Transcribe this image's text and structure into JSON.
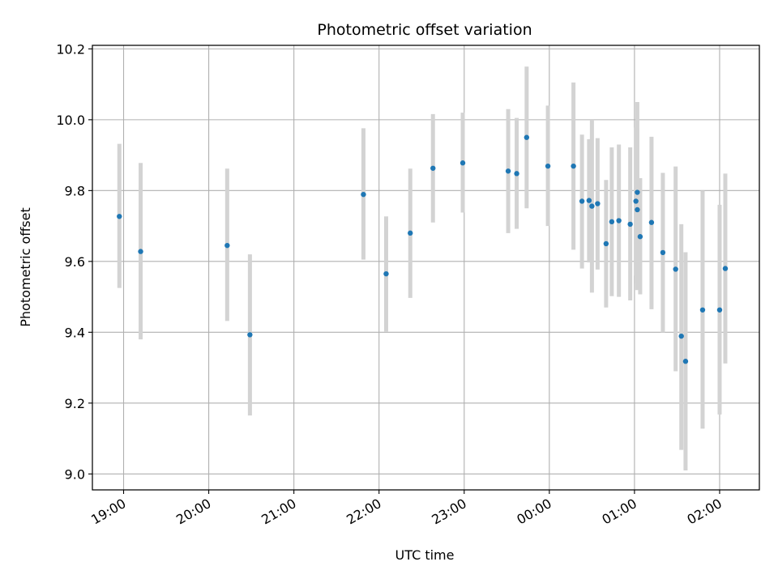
{
  "chart_data": {
    "type": "scatter",
    "title": "Photometric offset variation",
    "xlabel": "UTC time",
    "ylabel": "Photometric offset",
    "x_tick_labels": [
      "19:00",
      "20:00",
      "21:00",
      "22:00",
      "23:00",
      "00:00",
      "01:00",
      "02:00"
    ],
    "x_tick_times": [
      "19:00",
      "20:00",
      "21:00",
      "22:00",
      "23:00",
      "00:00",
      "01:00",
      "02:00"
    ],
    "xlim": [
      "18:38",
      "02:28"
    ],
    "ylim": [
      8.955,
      10.21
    ],
    "y_tick_labels": [
      "9.0",
      "9.2",
      "9.4",
      "9.6",
      "9.8",
      "10.0",
      "10.2"
    ],
    "y_ticks": [
      9.0,
      9.2,
      9.4,
      9.6,
      9.8,
      10.0,
      10.2
    ],
    "grid": true,
    "colors": {
      "points": "#1f77b4",
      "error_bars": "#d3d3d3",
      "grid": "#b0b0b0"
    },
    "series": [
      {
        "points": [
          {
            "t": "18:57",
            "y": 9.727,
            "lo": 9.525,
            "hi": 9.932
          },
          {
            "t": "19:12",
            "y": 9.628,
            "lo": 9.38,
            "hi": 9.878
          },
          {
            "t": "20:13",
            "y": 9.645,
            "lo": 9.432,
            "hi": 9.862
          },
          {
            "t": "20:29",
            "y": 9.393,
            "lo": 9.165,
            "hi": 9.62
          },
          {
            "t": "21:49",
            "y": 9.789,
            "lo": 9.605,
            "hi": 9.976
          },
          {
            "t": "22:05",
            "y": 9.565,
            "lo": 9.402,
            "hi": 9.727
          },
          {
            "t": "22:22",
            "y": 9.68,
            "lo": 9.497,
            "hi": 9.862
          },
          {
            "t": "22:38",
            "y": 9.863,
            "lo": 9.71,
            "hi": 10.016
          },
          {
            "t": "22:59",
            "y": 9.878,
            "lo": 9.738,
            "hi": 10.02
          },
          {
            "t": "23:31",
            "y": 9.855,
            "lo": 9.68,
            "hi": 10.03
          },
          {
            "t": "23:37",
            "y": 9.848,
            "lo": 9.692,
            "hi": 10.005
          },
          {
            "t": "23:44",
            "y": 9.95,
            "lo": 9.75,
            "hi": 10.15
          },
          {
            "t": "23:59",
            "y": 9.869,
            "lo": 9.7,
            "hi": 10.04
          },
          {
            "t": "00:17",
            "y": 9.869,
            "lo": 9.633,
            "hi": 10.105
          },
          {
            "t": "00:23",
            "y": 9.77,
            "lo": 9.58,
            "hi": 9.958
          },
          {
            "t": "00:28",
            "y": 9.772,
            "lo": 9.597,
            "hi": 9.945
          },
          {
            "t": "00:30",
            "y": 9.756,
            "lo": 9.512,
            "hi": 10.0
          },
          {
            "t": "00:34",
            "y": 9.763,
            "lo": 9.577,
            "hi": 9.948
          },
          {
            "t": "00:40",
            "y": 9.65,
            "lo": 9.47,
            "hi": 9.83
          },
          {
            "t": "00:44",
            "y": 9.712,
            "lo": 9.502,
            "hi": 9.922
          },
          {
            "t": "00:49",
            "y": 9.715,
            "lo": 9.5,
            "hi": 9.93
          },
          {
            "t": "00:57",
            "y": 9.705,
            "lo": 9.49,
            "hi": 9.922
          },
          {
            "t": "01:01",
            "y": 9.77,
            "lo": 9.56,
            "hi": 9.978
          },
          {
            "t": "01:02",
            "y": 9.795,
            "lo": 9.538,
            "hi": 10.05
          },
          {
            "t": "01:02",
            "y": 9.746,
            "lo": 9.519,
            "hi": 9.975
          },
          {
            "t": "01:04",
            "y": 9.67,
            "lo": 9.507,
            "hi": 9.835
          },
          {
            "t": "01:12",
            "y": 9.71,
            "lo": 9.465,
            "hi": 9.952
          },
          {
            "t": "01:20",
            "y": 9.625,
            "lo": 9.4,
            "hi": 9.85
          },
          {
            "t": "01:29",
            "y": 9.578,
            "lo": 9.29,
            "hi": 9.868
          },
          {
            "t": "01:33",
            "y": 9.389,
            "lo": 9.068,
            "hi": 9.705
          },
          {
            "t": "01:36",
            "y": 9.318,
            "lo": 9.01,
            "hi": 9.626
          },
          {
            "t": "01:48",
            "y": 9.463,
            "lo": 9.128,
            "hi": 9.8
          },
          {
            "t": "02:00",
            "y": 9.463,
            "lo": 9.168,
            "hi": 9.76
          },
          {
            "t": "02:04",
            "y": 9.58,
            "lo": 9.312,
            "hi": 9.848
          }
        ]
      }
    ]
  }
}
